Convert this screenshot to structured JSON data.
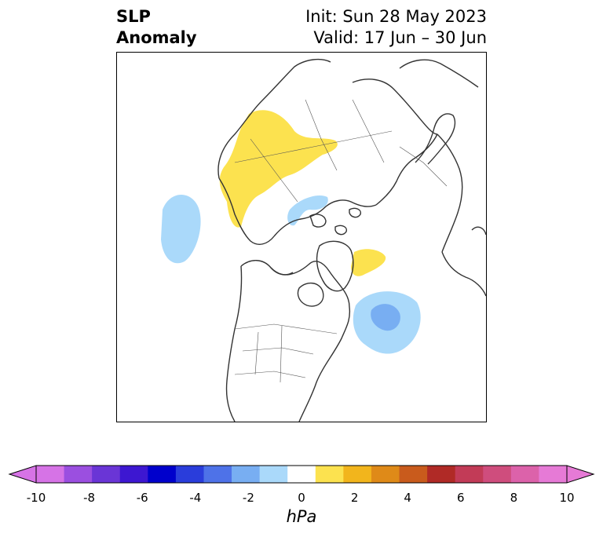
{
  "title": {
    "left_line1": "SLP",
    "left_line2": "Anomaly",
    "right_line1": "Init: Sun 28 May 2023",
    "right_line2": "Valid: 17 Jun – 30 Jun"
  },
  "colorbar": {
    "units": "hPa",
    "ticks": [
      "-10",
      "-8",
      "-6",
      "-4",
      "-2",
      "0",
      "2",
      "4",
      "6",
      "8",
      "10"
    ],
    "colors": [
      "#d673e6",
      "#9b4fe0",
      "#6a35d6",
      "#3d17d1",
      "#0000cc",
      "#2a3ddb",
      "#4e72e8",
      "#78aef2",
      "#aad9fa",
      "#ffffff",
      "#fce24f",
      "#f2b51c",
      "#df8a18",
      "#c95b1c",
      "#b02a26",
      "#c23b57",
      "#cf4d7d",
      "#dc62aa",
      "#e67ad6"
    ],
    "extend_low_color": "#d673e6",
    "extend_high_color": "#e67ad6"
  },
  "map": {
    "land_outline_color": "#333333",
    "anomalies": [
      {
        "sign": "positive",
        "region": "Russia / Siberia",
        "color": "#fce24f"
      },
      {
        "sign": "positive",
        "region": "Greenland east coast",
        "color": "#fce24f"
      },
      {
        "sign": "negative",
        "region": "North Pacific / Aleutians",
        "color": "#aad9fa"
      },
      {
        "sign": "negative",
        "region": "Barents / Kara Sea",
        "color": "#aad9fa"
      },
      {
        "sign": "negative",
        "region": "North Atlantic (Newfoundland)",
        "color": "#aad9fa"
      },
      {
        "sign": "negative",
        "region": "North Atlantic core",
        "color": "#78aef2"
      }
    ]
  }
}
